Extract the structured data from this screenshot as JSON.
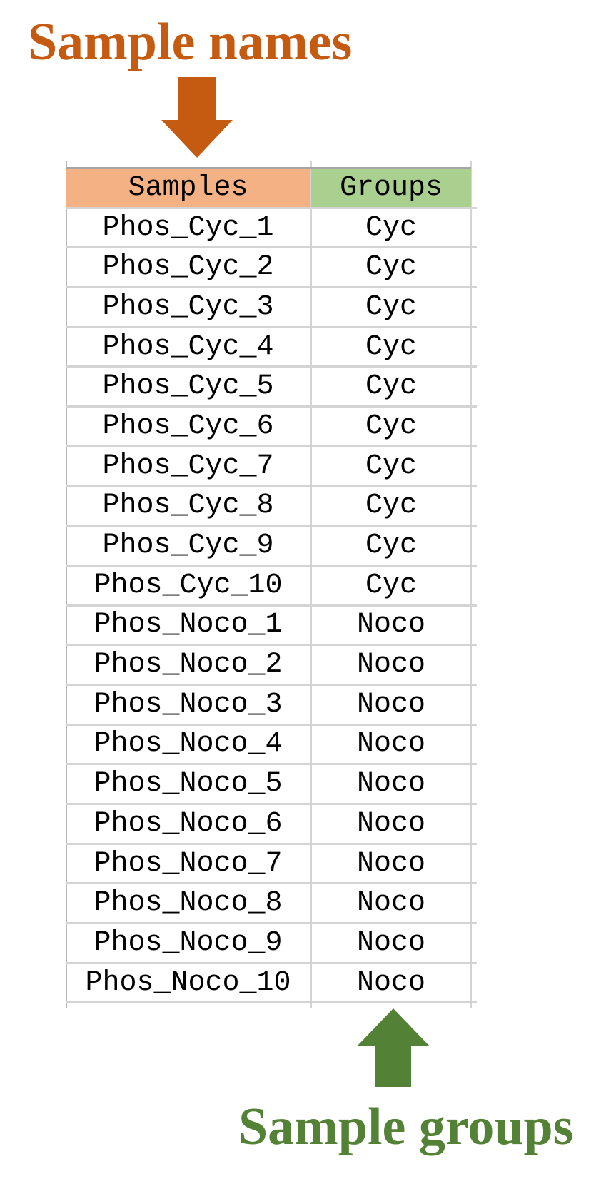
{
  "annotations": {
    "top_label": "Sample names",
    "bottom_label": "Sample groups",
    "top_color": "#c55a11",
    "bottom_color": "#538135"
  },
  "table": {
    "headers": [
      "Samples",
      "Groups"
    ],
    "header_colors": [
      "#f4b183",
      "#a9d08e"
    ],
    "rows": [
      [
        "Phos_Cyc_1",
        "Cyc"
      ],
      [
        "Phos_Cyc_2",
        "Cyc"
      ],
      [
        "Phos_Cyc_3",
        "Cyc"
      ],
      [
        "Phos_Cyc_4",
        "Cyc"
      ],
      [
        "Phos_Cyc_5",
        "Cyc"
      ],
      [
        "Phos_Cyc_6",
        "Cyc"
      ],
      [
        "Phos_Cyc_7",
        "Cyc"
      ],
      [
        "Phos_Cyc_8",
        "Cyc"
      ],
      [
        "Phos_Cyc_9",
        "Cyc"
      ],
      [
        "Phos_Cyc_10",
        "Cyc"
      ],
      [
        "Phos_Noco_1",
        "Noco"
      ],
      [
        "Phos_Noco_2",
        "Noco"
      ],
      [
        "Phos_Noco_3",
        "Noco"
      ],
      [
        "Phos_Noco_4",
        "Noco"
      ],
      [
        "Phos_Noco_5",
        "Noco"
      ],
      [
        "Phos_Noco_6",
        "Noco"
      ],
      [
        "Phos_Noco_7",
        "Noco"
      ],
      [
        "Phos_Noco_8",
        "Noco"
      ],
      [
        "Phos_Noco_9",
        "Noco"
      ],
      [
        "Phos_Noco_10",
        "Noco"
      ]
    ]
  }
}
